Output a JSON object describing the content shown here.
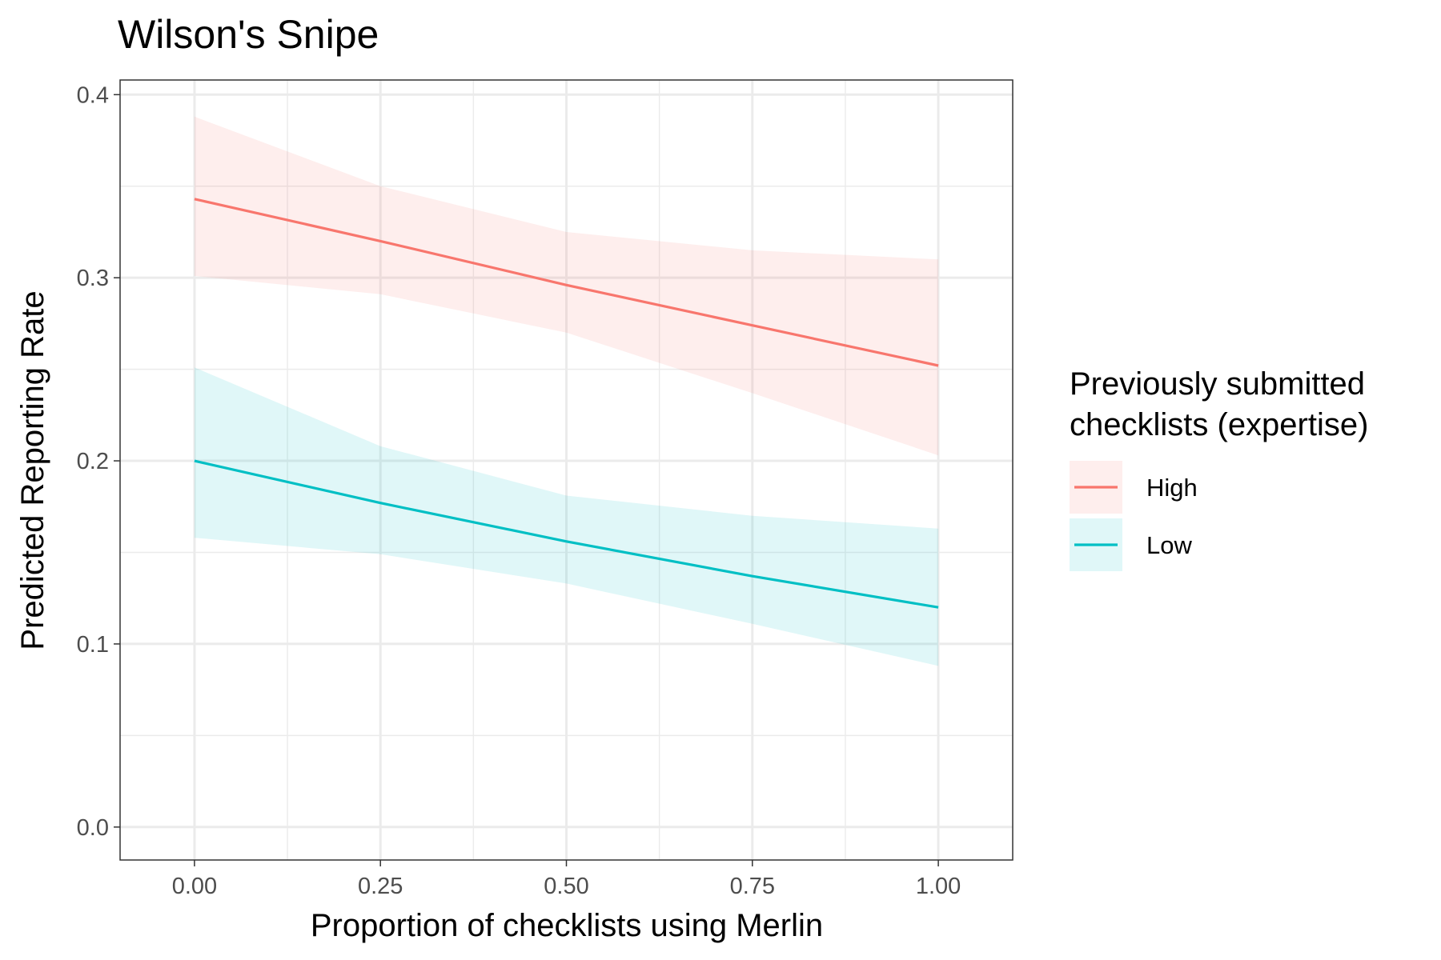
{
  "chart_data": {
    "type": "line",
    "title": "Wilson's Snipe",
    "xlabel": "Proportion of checklists using Merlin",
    "ylabel": "Predicted Reporting Rate",
    "xlim": [
      -0.1,
      1.1
    ],
    "ylim": [
      -0.018,
      0.408
    ],
    "xticks": [
      0,
      0.25,
      0.5,
      0.75,
      1.0
    ],
    "xtick_labels": [
      "0.00",
      "0.25",
      "0.50",
      "0.75",
      "1.00"
    ],
    "yticks": [
      0,
      0.1,
      0.2,
      0.3,
      0.4
    ],
    "ytick_labels": [
      "0.0",
      "0.1",
      "0.2",
      "0.3",
      "0.4"
    ],
    "grid": true,
    "legend": {
      "position": "right",
      "title_lines": [
        "Previously submitted",
        "checklists (expertise)"
      ]
    },
    "x": [
      0,
      0.25,
      0.5,
      0.75,
      1.0
    ],
    "series": [
      {
        "name": "High",
        "color": "#F8766D",
        "values": [
          0.343,
          0.32,
          0.296,
          0.274,
          0.252
        ],
        "lower": [
          0.301,
          0.291,
          0.27,
          0.237,
          0.203
        ],
        "upper": [
          0.388,
          0.35,
          0.325,
          0.315,
          0.31
        ]
      },
      {
        "name": "Low",
        "color": "#00BFC4",
        "values": [
          0.2,
          0.177,
          0.156,
          0.137,
          0.12
        ],
        "lower": [
          0.158,
          0.149,
          0.133,
          0.111,
          0.088
        ],
        "upper": [
          0.251,
          0.208,
          0.181,
          0.17,
          0.163
        ]
      }
    ]
  }
}
